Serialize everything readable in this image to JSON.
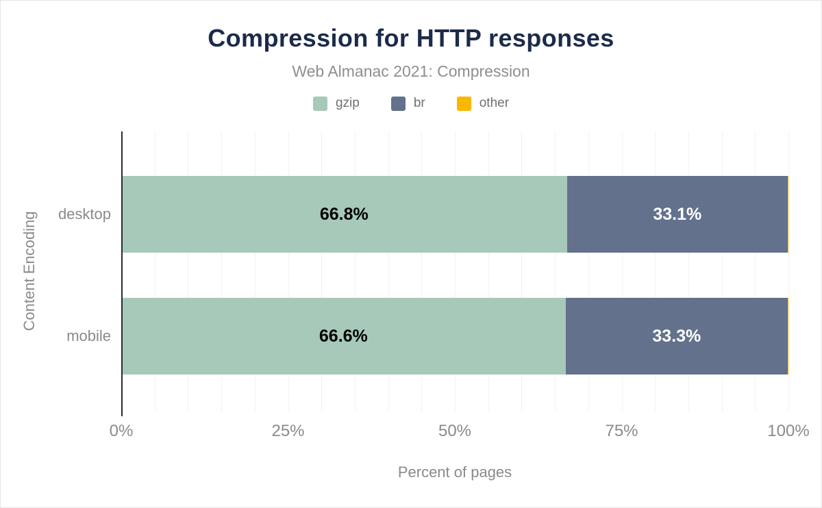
{
  "header": {
    "title": "Compression for HTTP responses",
    "subtitle": "Web Almanac 2021: Compression"
  },
  "chart_data": {
    "type": "bar",
    "orientation": "horizontal",
    "stacked": true,
    "title": "Compression for HTTP responses",
    "subtitle": "Web Almanac 2021: Compression",
    "xlabel": "Percent of pages",
    "ylabel": "Content Encoding",
    "xlim": [
      0,
      100
    ],
    "grid": true,
    "grid_step": 5,
    "legend_position": "top",
    "categories": [
      "desktop",
      "mobile"
    ],
    "x_ticks": [
      {
        "value": 0,
        "label": "0%"
      },
      {
        "value": 25,
        "label": "25%"
      },
      {
        "value": 50,
        "label": "50%"
      },
      {
        "value": 75,
        "label": "75%"
      },
      {
        "value": 100,
        "label": "100%"
      }
    ],
    "series": [
      {
        "name": "gzip",
        "color": "#a7c9ba",
        "label_color": "#000000",
        "values": [
          66.8,
          66.6
        ],
        "labels": [
          "66.8%",
          "66.6%"
        ]
      },
      {
        "name": "br",
        "color": "#63718c",
        "label_color": "#ffffff",
        "values": [
          33.1,
          33.3
        ],
        "labels": [
          "33.1%",
          "33.3%"
        ]
      },
      {
        "name": "other",
        "color": "#f9b800",
        "label_color": "#000000",
        "values": [
          0.1,
          0.1
        ],
        "labels": [
          "",
          ""
        ]
      }
    ]
  },
  "colors": {
    "title": "#1c2b4a",
    "subtitle": "#8e8e8e",
    "axis_text": "#8a8a8a",
    "axis_line": "#2b2b2b",
    "gridline": "#f2f2f2",
    "background": "#ffffff"
  }
}
